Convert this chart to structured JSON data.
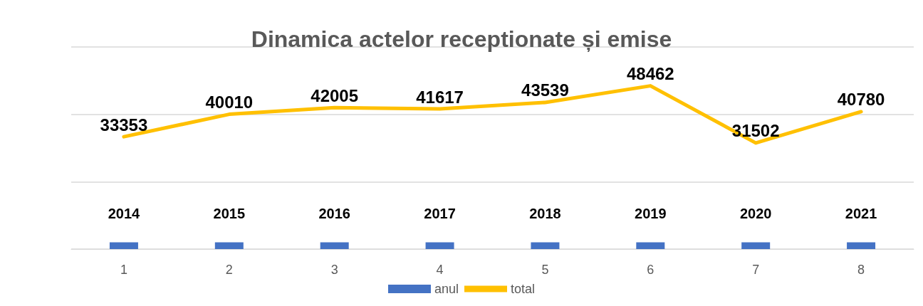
{
  "chart_data": {
    "type": "bar",
    "title": "Dinamica actelor receptionate și emise",
    "categories": [
      "1",
      "2",
      "3",
      "4",
      "5",
      "6",
      "7",
      "8"
    ],
    "series": [
      {
        "name": "anul",
        "color": "#4472c4",
        "values": [
          2014,
          2015,
          2016,
          2017,
          2018,
          2019,
          2020,
          2021
        ]
      },
      {
        "name": "total",
        "type": "line",
        "color": "#ffc000",
        "values": [
          33353,
          40010,
          42005,
          41617,
          43539,
          48462,
          31502,
          40780
        ]
      }
    ],
    "ylim": [
      0,
      60000
    ],
    "yticks": [
      {
        "value": 0,
        "label": null
      },
      {
        "value": 20000,
        "label": null
      },
      {
        "value": 40000,
        "label": null
      },
      {
        "value": 60000,
        "label": null
      }
    ],
    "tick_labels": "x",
    "grid": "y",
    "legend": "bottom",
    "data_labels": true,
    "marker": "none",
    "line_style": "solid"
  }
}
